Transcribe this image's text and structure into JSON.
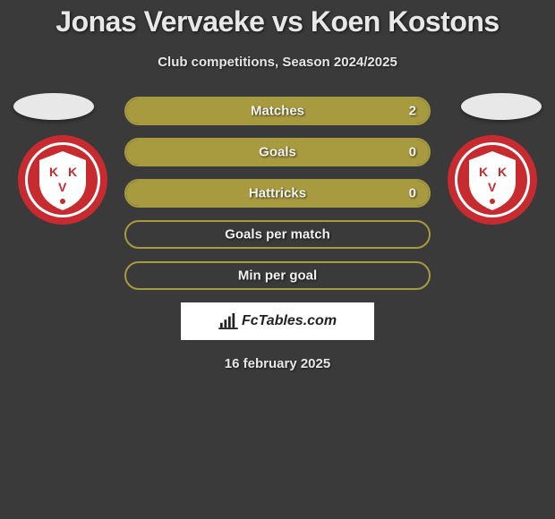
{
  "title": "Jonas Vervaeke vs Koen Kostons",
  "subtitle": "Club competitions, Season 2024/2025",
  "date": "16 february 2025",
  "brand_text": "FcTables.com",
  "colors": {
    "background": "#3a3a3a",
    "bar_fill": "#a89a3f",
    "bar_border": "#a89a3f",
    "text": "#e8e8e8",
    "photo_bg": "#e8e8e8",
    "brand_bg": "#ffffff"
  },
  "badge": {
    "outer": "#c82b2f",
    "inner": "#ffffff",
    "text": "#c82b2f",
    "letters": "K V K"
  },
  "bars": [
    {
      "label": "Matches",
      "left": "",
      "right": "2",
      "fill_pct": 100
    },
    {
      "label": "Goals",
      "left": "",
      "right": "0",
      "fill_pct": 100
    },
    {
      "label": "Hattricks",
      "left": "",
      "right": "0",
      "fill_pct": 100
    },
    {
      "label": "Goals per match",
      "left": "",
      "right": "",
      "fill_pct": 0
    },
    {
      "label": "Min per goal",
      "left": "",
      "right": "",
      "fill_pct": 0
    }
  ]
}
